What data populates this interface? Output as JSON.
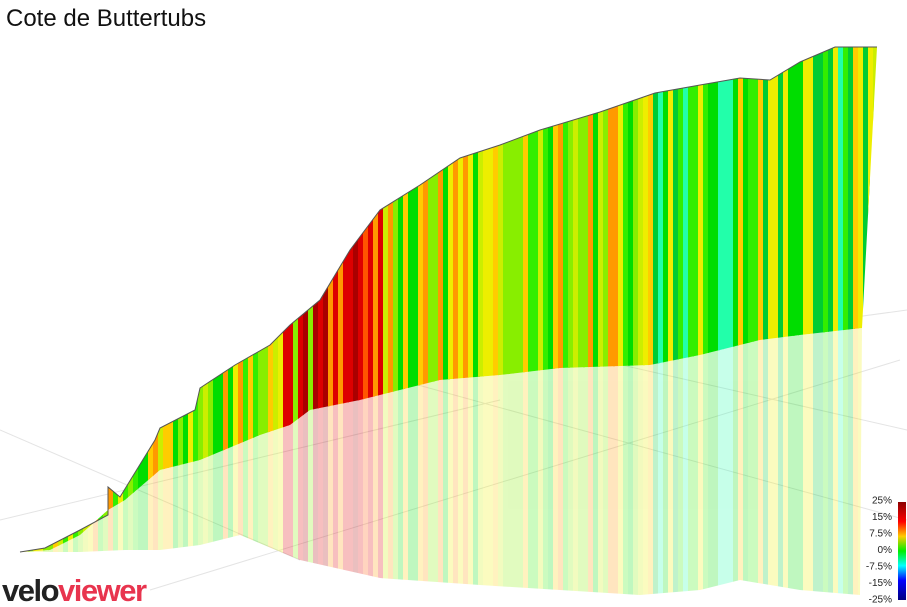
{
  "header": {
    "title": "Cote de Buttertubs"
  },
  "legend": {
    "labels": [
      "25%",
      "15%",
      "7.5%",
      "0%",
      "-7.5%",
      "-15%",
      "-25%"
    ]
  },
  "logo": {
    "first": "velo",
    "second": "viewer"
  }
}
